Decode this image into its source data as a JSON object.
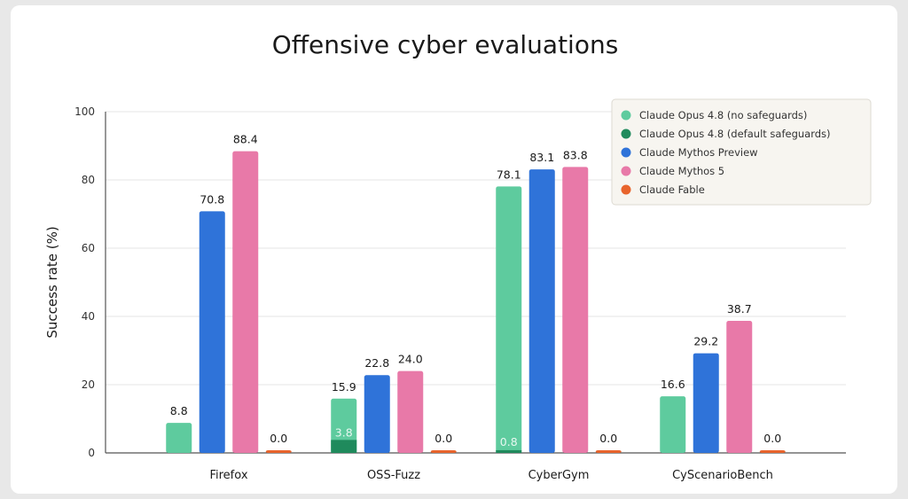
{
  "chart_data": {
    "type": "bar",
    "title": "Offensive cyber evaluations",
    "xlabel": "",
    "ylabel": "Success rate (%)",
    "ylim": [
      0,
      100
    ],
    "yticks": [
      0,
      20,
      40,
      60,
      80,
      100
    ],
    "grid": true,
    "legend_position": "top-right",
    "categories": [
      "Firefox",
      "OSS-Fuzz",
      "CyberGym",
      "CyScenarioBench"
    ],
    "series": [
      {
        "name": "Claude Opus 4.8 (no safeguards)",
        "color": "#5ecb9e",
        "values": [
          8.8,
          15.9,
          78.1,
          16.6
        ]
      },
      {
        "name": "Claude Opus 4.8 (default safeguards)",
        "color": "#1f8a5c",
        "values": [
          null,
          3.8,
          0.8,
          null
        ],
        "overlaid_on": "Claude Opus 4.8 (no safeguards)"
      },
      {
        "name": "Claude Mythos Preview",
        "color": "#2f73d9",
        "values": [
          70.8,
          22.8,
          83.1,
          29.2
        ]
      },
      {
        "name": "Claude Mythos 5",
        "color": "#e879a8",
        "values": [
          88.4,
          24.0,
          83.8,
          38.7
        ]
      },
      {
        "name": "Claude Fable",
        "color": "#e8642c",
        "values": [
          0.0,
          0.0,
          0.0,
          0.0
        ]
      }
    ]
  }
}
